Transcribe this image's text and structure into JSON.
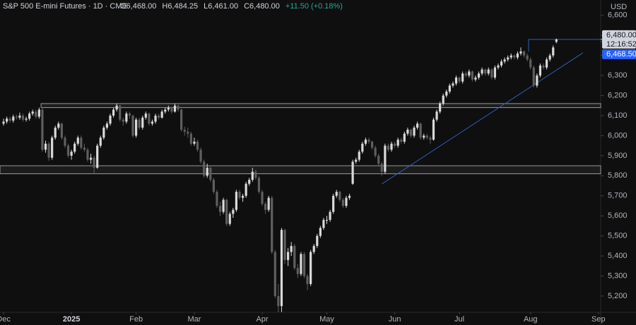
{
  "chart_data": {
    "type": "candlestick",
    "title": "S&P 500 E-mini Futures · 1D · CME",
    "header_values": [
      "O6,468.00",
      "H6,484.25",
      "L6,461.00",
      "C6,480.00",
      "+11.50 (+0.18%)"
    ],
    "currency": "USD",
    "up_color": "#d9d9d9",
    "down_color": "#5f5f5f",
    "ylim": [
      5119,
      6676.6
    ],
    "yticks": [
      {
        "value": 5200,
        "label": "5,200"
      },
      {
        "value": 5300,
        "label": "5,300"
      },
      {
        "value": 5400,
        "label": "5,400"
      },
      {
        "value": 5500,
        "label": "5,500"
      },
      {
        "value": 5600,
        "label": "5,600"
      },
      {
        "value": 5700,
        "label": "5,700"
      },
      {
        "value": 5800,
        "label": "5,800"
      },
      {
        "value": 5900,
        "label": "5,900"
      },
      {
        "value": 6000,
        "label": "6,000"
      },
      {
        "value": 6100,
        "label": "6,100"
      },
      {
        "value": 6200,
        "label": "6,200"
      },
      {
        "value": 6300,
        "label": "6,300"
      },
      {
        "value": 6400,
        "label": "6,400"
      },
      {
        "value": 6500,
        "label": "6,500"
      },
      {
        "value": 6600,
        "label": "6,600"
      }
    ],
    "xlim": [
      -1.1,
      184.7
    ],
    "xticks": [
      {
        "value": 0,
        "label": "Dec"
      },
      {
        "value": 21,
        "label": "2025"
      },
      {
        "value": 41,
        "label": "Feb"
      },
      {
        "value": 59,
        "label": "Mar"
      },
      {
        "value": 80,
        "label": "Apr"
      },
      {
        "value": 100,
        "label": "May"
      },
      {
        "value": 121,
        "label": "Jun"
      },
      {
        "value": 141,
        "label": "Jul"
      },
      {
        "value": 163,
        "label": "Aug"
      },
      {
        "value": 184,
        "label": "Sep"
      }
    ],
    "last_price": {
      "value": 6480,
      "label": "6,480.00"
    },
    "countdown": "12:16:52",
    "price_marker": {
      "value": 6468.5,
      "label": "6,468.50"
    },
    "annotations": {
      "zones": [
        {
          "from": 11.6,
          "low": 6140,
          "high": 6160
        },
        {
          "from": -1.1,
          "low": 5810,
          "high": 5850
        }
      ],
      "trendline": {
        "x": [
          117,
          179.2
        ],
        "y": [
          5759,
          6413
        ]
      },
      "level": {
        "from": 162.4,
        "value": 6480,
        "drop_to": 6420
      }
    },
    "ohlc": [
      [
        6060,
        6085,
        6050,
        6070
      ],
      [
        6070,
        6095,
        6060,
        6085
      ],
      [
        6085,
        6095,
        6065,
        6075
      ],
      [
        6075,
        6105,
        6065,
        6095
      ],
      [
        6095,
        6105,
        6080,
        6090
      ],
      [
        6090,
        6115,
        6080,
        6100
      ],
      [
        6100,
        6110,
        6070,
        6080
      ],
      [
        6080,
        6095,
        6070,
        6085
      ],
      [
        6085,
        6120,
        6075,
        6110
      ],
      [
        6110,
        6130,
        6100,
        6120
      ],
      [
        6120,
        6130,
        6085,
        6095
      ],
      [
        6095,
        6140,
        6085,
        6130
      ],
      [
        6130,
        6140,
        5920,
        5930
      ],
      [
        5930,
        5975,
        5915,
        5960
      ],
      [
        5960,
        5970,
        5875,
        5890
      ],
      [
        5890,
        6000,
        5880,
        5990
      ],
      [
        5990,
        6050,
        5980,
        6040
      ],
      [
        6040,
        6070,
        6030,
        6060
      ],
      [
        6060,
        6065,
        5980,
        5990
      ],
      [
        5990,
        6000,
        5940,
        5950
      ],
      [
        5950,
        5960,
        5890,
        5900
      ],
      [
        5900,
        5930,
        5880,
        5920
      ],
      [
        5920,
        5970,
        5910,
        5960
      ],
      [
        5960,
        6000,
        5950,
        5990
      ],
      [
        5990,
        6000,
        5930,
        5940
      ],
      [
        5940,
        5960,
        5920,
        5930
      ],
      [
        5930,
        5940,
        5870,
        5880
      ],
      [
        5880,
        5910,
        5860,
        5890
      ],
      [
        5890,
        5900,
        5810,
        5840
      ],
      [
        5840,
        5960,
        5835,
        5950
      ],
      [
        5950,
        6000,
        5940,
        5990
      ],
      [
        5990,
        6050,
        5980,
        6040
      ],
      [
        6040,
        6070,
        6030,
        6060
      ],
      [
        6060,
        6110,
        6050,
        6100
      ],
      [
        6100,
        6140,
        6090,
        6130
      ],
      [
        6130,
        6160,
        6120,
        6150
      ],
      [
        6150,
        6155,
        6070,
        6080
      ],
      [
        6080,
        6090,
        6050,
        6070
      ],
      [
        6070,
        6120,
        6060,
        6110
      ],
      [
        6110,
        6120,
        6085,
        6100
      ],
      [
        6100,
        6105,
        5990,
        6000
      ],
      [
        6000,
        6090,
        5990,
        6080
      ],
      [
        6080,
        6090,
        6030,
        6040
      ],
      [
        6040,
        6100,
        6030,
        6090
      ],
      [
        6090,
        6120,
        6080,
        6110
      ],
      [
        6110,
        6115,
        6050,
        6060
      ],
      [
        6060,
        6080,
        6050,
        6070
      ],
      [
        6070,
        6110,
        6060,
        6100
      ],
      [
        6100,
        6110,
        6080,
        6090
      ],
      [
        6090,
        6130,
        6085,
        6120
      ],
      [
        6120,
        6140,
        6110,
        6130
      ],
      [
        6130,
        6150,
        6120,
        6140
      ],
      [
        6140,
        6145,
        6110,
        6120
      ],
      [
        6120,
        6160,
        6115,
        6150
      ],
      [
        6150,
        6155,
        6120,
        6130
      ],
      [
        6130,
        6135,
        6020,
        6030
      ],
      [
        6030,
        6045,
        6000,
        6020
      ],
      [
        6020,
        6040,
        5990,
        6010
      ],
      [
        6010,
        6020,
        5950,
        5960
      ],
      [
        5960,
        5990,
        5950,
        5970
      ],
      [
        5970,
        5980,
        5920,
        5930
      ],
      [
        5930,
        5940,
        5860,
        5870
      ],
      [
        5870,
        5880,
        5790,
        5800
      ],
      [
        5800,
        5860,
        5790,
        5840
      ],
      [
        5840,
        5850,
        5770,
        5780
      ],
      [
        5780,
        5790,
        5710,
        5720
      ],
      [
        5720,
        5730,
        5640,
        5650
      ],
      [
        5650,
        5670,
        5600,
        5620
      ],
      [
        5620,
        5690,
        5610,
        5680
      ],
      [
        5680,
        5685,
        5550,
        5560
      ],
      [
        5560,
        5620,
        5550,
        5610
      ],
      [
        5610,
        5640,
        5590,
        5630
      ],
      [
        5630,
        5730,
        5620,
        5720
      ],
      [
        5720,
        5730,
        5680,
        5690
      ],
      [
        5690,
        5710,
        5670,
        5700
      ],
      [
        5700,
        5770,
        5690,
        5760
      ],
      [
        5760,
        5790,
        5750,
        5780
      ],
      [
        5780,
        5840,
        5770,
        5820
      ],
      [
        5820,
        5830,
        5780,
        5790
      ],
      [
        5790,
        5800,
        5710,
        5720
      ],
      [
        5720,
        5730,
        5650,
        5660
      ],
      [
        5660,
        5670,
        5610,
        5630
      ],
      [
        5630,
        5700,
        5620,
        5690
      ],
      [
        5690,
        5700,
        5410,
        5420
      ],
      [
        5420,
        5430,
        5190,
        5200
      ],
      [
        5200,
        5260,
        5119,
        5150
      ],
      [
        5150,
        5540,
        5120,
        5530
      ],
      [
        5530,
        5535,
        5360,
        5380
      ],
      [
        5380,
        5440,
        5350,
        5420
      ],
      [
        5420,
        5470,
        5400,
        5450
      ],
      [
        5450,
        5460,
        5330,
        5340
      ],
      [
        5340,
        5360,
        5290,
        5310
      ],
      [
        5310,
        5420,
        5300,
        5410
      ],
      [
        5410,
        5420,
        5290,
        5300
      ],
      [
        5300,
        5310,
        5230,
        5260
      ],
      [
        5260,
        5430,
        5250,
        5420
      ],
      [
        5420,
        5460,
        5410,
        5450
      ],
      [
        5450,
        5510,
        5440,
        5500
      ],
      [
        5500,
        5550,
        5490,
        5540
      ],
      [
        5540,
        5590,
        5530,
        5580
      ],
      [
        5580,
        5600,
        5560,
        5580
      ],
      [
        5580,
        5630,
        5570,
        5620
      ],
      [
        5620,
        5710,
        5610,
        5700
      ],
      [
        5700,
        5730,
        5690,
        5720
      ],
      [
        5720,
        5725,
        5670,
        5680
      ],
      [
        5680,
        5690,
        5640,
        5650
      ],
      [
        5650,
        5700,
        5640,
        5690
      ],
      [
        5690,
        5710,
        5680,
        5700
      ],
      [
        5760,
        5880,
        5755,
        5870
      ],
      [
        5870,
        5890,
        5860,
        5880
      ],
      [
        5880,
        5930,
        5870,
        5920
      ],
      [
        5920,
        5970,
        5910,
        5960
      ],
      [
        5960,
        5990,
        5950,
        5980
      ],
      [
        5980,
        5990,
        5960,
        5970
      ],
      [
        5970,
        5975,
        5930,
        5940
      ],
      [
        5940,
        5950,
        5890,
        5900
      ],
      [
        5900,
        5910,
        5850,
        5860
      ],
      [
        5860,
        5870,
        5800,
        5820
      ],
      [
        5820,
        5960,
        5810,
        5950
      ],
      [
        5950,
        5960,
        5920,
        5930
      ],
      [
        5930,
        5970,
        5920,
        5960
      ],
      [
        5960,
        5970,
        5940,
        5950
      ],
      [
        5950,
        5990,
        5940,
        5980
      ],
      [
        5980,
        5990,
        5960,
        5970
      ],
      [
        5970,
        6020,
        5960,
        6010
      ],
      [
        6010,
        6040,
        6000,
        6030
      ],
      [
        6030,
        6035,
        5990,
        6000
      ],
      [
        6000,
        6050,
        5990,
        6040
      ],
      [
        6040,
        6070,
        6030,
        6060
      ],
      [
        6060,
        6065,
        5980,
        5990
      ],
      [
        5990,
        6010,
        5980,
        6000
      ],
      [
        6000,
        6010,
        5980,
        5990
      ],
      [
        5990,
        6000,
        5960,
        5980
      ],
      [
        5980,
        6090,
        5975,
        6080
      ],
      [
        6080,
        6130,
        6070,
        6120
      ],
      [
        6120,
        6170,
        6110,
        6160
      ],
      [
        6160,
        6210,
        6150,
        6200
      ],
      [
        6200,
        6230,
        6190,
        6220
      ],
      [
        6220,
        6260,
        6210,
        6250
      ],
      [
        6250,
        6270,
        6240,
        6260
      ],
      [
        6260,
        6300,
        6250,
        6290
      ],
      [
        6290,
        6295,
        6260,
        6270
      ],
      [
        6270,
        6320,
        6260,
        6310
      ],
      [
        6310,
        6320,
        6290,
        6300
      ],
      [
        6300,
        6330,
        6290,
        6320
      ],
      [
        6320,
        6325,
        6270,
        6280
      ],
      [
        6280,
        6300,
        6270,
        6290
      ],
      [
        6290,
        6320,
        6280,
        6310
      ],
      [
        6310,
        6340,
        6300,
        6330
      ],
      [
        6330,
        6335,
        6300,
        6310
      ],
      [
        6310,
        6340,
        6300,
        6330
      ],
      [
        6330,
        6335,
        6280,
        6290
      ],
      [
        6290,
        6350,
        6280,
        6340
      ],
      [
        6340,
        6360,
        6330,
        6350
      ],
      [
        6350,
        6380,
        6340,
        6370
      ],
      [
        6370,
        6390,
        6360,
        6380
      ],
      [
        6380,
        6400,
        6370,
        6390
      ],
      [
        6390,
        6410,
        6380,
        6400
      ],
      [
        6400,
        6405,
        6380,
        6390
      ],
      [
        6390,
        6420,
        6380,
        6410
      ],
      [
        6410,
        6440,
        6400,
        6420
      ],
      [
        6420,
        6425,
        6390,
        6400
      ],
      [
        6400,
        6410,
        6370,
        6380
      ],
      [
        6380,
        6390,
        6330,
        6340
      ],
      [
        6340,
        6350,
        6240,
        6250
      ],
      [
        6250,
        6310,
        6240,
        6300
      ],
      [
        6300,
        6360,
        6290,
        6350
      ],
      [
        6350,
        6360,
        6330,
        6340
      ],
      [
        6340,
        6390,
        6330,
        6380
      ],
      [
        6380,
        6410,
        6370,
        6400
      ],
      [
        6400,
        6450,
        6390,
        6440
      ],
      [
        6468,
        6484.25,
        6461,
        6480
      ]
    ]
  }
}
